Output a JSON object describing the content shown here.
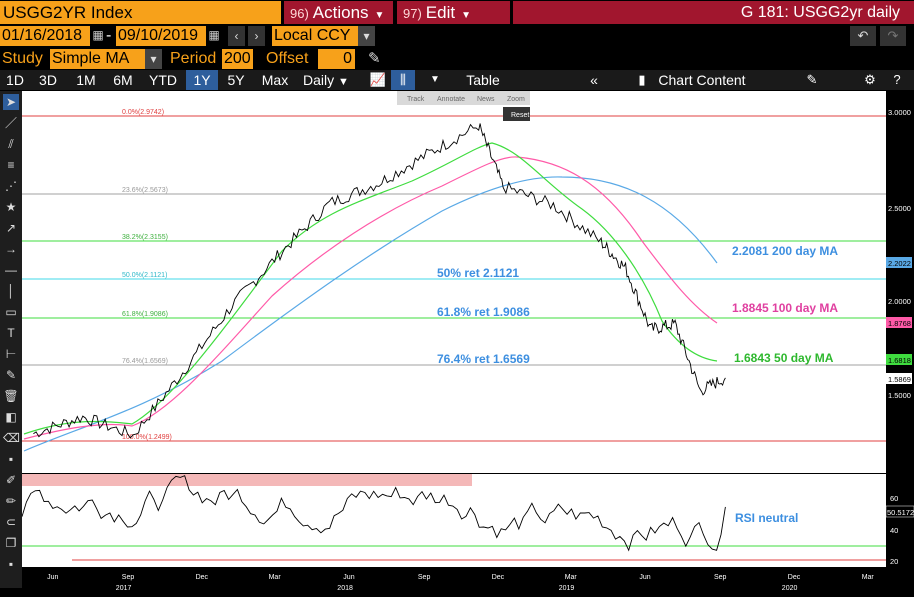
{
  "header": {
    "security": "USGG2YR Index",
    "actions": {
      "num": "96)",
      "label": "Actions"
    },
    "edit": {
      "num": "97)",
      "label": "Edit"
    },
    "window_title": "G 181: USGG2yr daily"
  },
  "range": {
    "start_date": "01/16/2018",
    "end_date": "09/10/2019",
    "currency": "Local CCY"
  },
  "study": {
    "label": "Study",
    "value": "Simple MA",
    "period_label": "Period",
    "period_value": "200",
    "offset_label": "Offset",
    "offset_value": "0"
  },
  "toolbar": {
    "periods": [
      "1D",
      "3D",
      "1M",
      "6M",
      "YTD",
      "1Y",
      "5Y",
      "Max"
    ],
    "active_period": "1Y",
    "frequency": "Daily",
    "table_label": "Table",
    "chart_content_label": "Chart Content"
  },
  "chart_tools": [
    "Track",
    "Annotate",
    "News",
    "Zoom"
  ],
  "reset_label": "Reset",
  "fib_levels": [
    {
      "label": "0.0%(2.9742)"
    },
    {
      "label": "23.6%(2.5673)"
    },
    {
      "label": "38.2%(2.3155)"
    },
    {
      "label": "50.0%(2.1121)"
    },
    {
      "label": "61.8%(1.9086)"
    },
    {
      "label": "76.4%(1.6569)"
    },
    {
      "label": "100.0%(1.2499)"
    }
  ],
  "annotations": {
    "ret50": "50% ret 2.1121",
    "ret618": "61.8% ret 1.9086",
    "ret764": "76.4% ret 1.6569",
    "ma200": "2.2081 200 day MA",
    "ma100": "1.8845 100 day MA",
    "ma50": "1.6843 50 day MA",
    "rsi": "RSI neutral"
  },
  "right_axis": {
    "ticks": [
      "3.0000",
      "2.5000",
      "2.0000",
      "1.5000"
    ],
    "badges": [
      {
        "text": "2.2022",
        "color": "#5aa9e6"
      },
      {
        "text": "1.8768",
        "color": "#ff5aa8"
      },
      {
        "text": "1.6818",
        "color": "#3fdc3f"
      },
      {
        "text": "1.5869",
        "color": "#ffffff"
      }
    ]
  },
  "rsi_axis": {
    "ticks": [
      "60",
      "40",
      "20"
    ],
    "badge": "50.5172"
  },
  "x_axis": {
    "months": [
      "Jun",
      "Sep",
      "Dec",
      "Mar",
      "Jun",
      "Sep",
      "Dec",
      "Mar",
      "Jun",
      "Sep",
      "Dec",
      "Mar"
    ],
    "years": [
      "2017",
      "2018",
      "2019",
      "2020"
    ]
  },
  "colors": {
    "ticker_bg": "#f7a11a",
    "menu_bg": "#a1162e",
    "price": "#000000",
    "ma50": "#3fdc3f",
    "ma100": "#ff5aa8",
    "ma200": "#5aa9e6",
    "fib_red": "#e04040",
    "fib_gray": "#a0a0a0",
    "fib_green": "#3fdc3f",
    "fib_cyan": "#40d8e8",
    "annot_blue": "#3d8fe0"
  },
  "chart_data": {
    "type": "line",
    "title": "USGG2YR Index",
    "x_range": [
      "2017-05",
      "2020-03"
    ],
    "ylim": [
      1.25,
      3.05
    ],
    "series": [
      {
        "name": "USGG2YR Index",
        "x": [
          "2017-05",
          "2017-07",
          "2017-09",
          "2017-11",
          "2018-01",
          "2018-03",
          "2018-05",
          "2018-07",
          "2018-09",
          "2018-11",
          "2018-12",
          "2019-02",
          "2019-04",
          "2019-05",
          "2019-06",
          "2019-07",
          "2019-08",
          "2019-09"
        ],
        "values": [
          1.29,
          1.38,
          1.28,
          1.62,
          1.98,
          2.26,
          2.53,
          2.64,
          2.8,
          2.95,
          2.62,
          2.52,
          2.32,
          2.18,
          1.85,
          1.88,
          1.52,
          1.59
        ]
      },
      {
        "name": "50 day MA",
        "last": 1.6843
      },
      {
        "name": "100 day MA",
        "last": 1.8845
      },
      {
        "name": "200 day MA",
        "last": 2.2081
      }
    ],
    "rsi": {
      "ylim": [
        15,
        70
      ],
      "last": 50.5172
    }
  }
}
